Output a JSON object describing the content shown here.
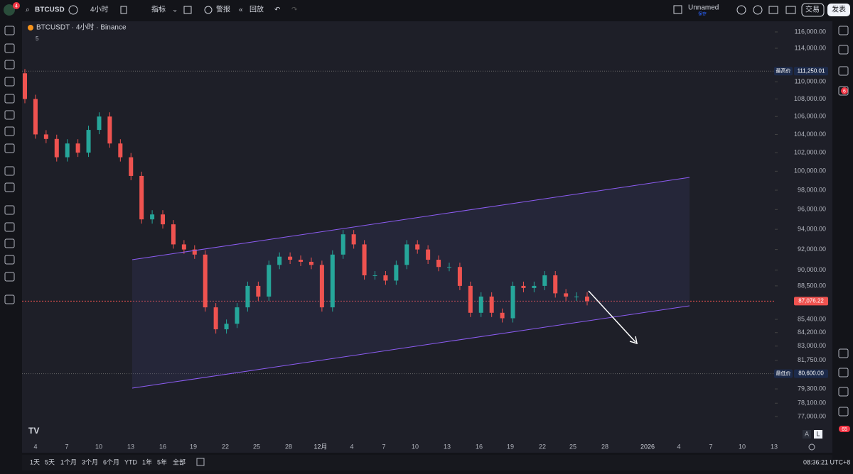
{
  "ui": {
    "symbol": "BTCUSD",
    "interval": "4小时",
    "indicators": "指标",
    "alerts": "警报",
    "replay": "回放",
    "layout_name": "Unnamed",
    "save": "保存",
    "trade": "交易",
    "publish": "发表",
    "logo_badge": "4",
    "chat_badge": "6",
    "bell_badge": "65",
    "auto_btn": "A",
    "log_btn": "L",
    "ranges": [
      "1天",
      "5天",
      "1个月",
      "3个月",
      "6个月",
      "YTD",
      "1年",
      "5年",
      "全部"
    ],
    "clock": "08:36:21 UTC+8"
  },
  "chart_data": {
    "type": "candlestick",
    "legend": "BTCUSDT · 4小时 · Binance",
    "legend_value": "5",
    "log_scale": true,
    "ylim": [
      77000,
      116000
    ],
    "yticks": [
      {
        "value": 116000,
        "label": "116,000.00"
      },
      {
        "value": 114000,
        "label": "114,000.00"
      },
      {
        "value": 110000,
        "label": "110,000.00"
      },
      {
        "value": 108000,
        "label": "108,000.00"
      },
      {
        "value": 106000,
        "label": "106,000.00"
      },
      {
        "value": 104000,
        "label": "104,000.00"
      },
      {
        "value": 102000,
        "label": "102,000.00"
      },
      {
        "value": 100000,
        "label": "100,000.00"
      },
      {
        "value": 98000,
        "label": "98,000.00"
      },
      {
        "value": 96000,
        "label": "96,000.00"
      },
      {
        "value": 94000,
        "label": "94,000.00"
      },
      {
        "value": 92000,
        "label": "92,000.00"
      },
      {
        "value": 90000,
        "label": "90,000.00"
      },
      {
        "value": 88500,
        "label": "88,500.00"
      },
      {
        "value": 85400,
        "label": "85,400.00"
      },
      {
        "value": 84200,
        "label": "84,200.00"
      },
      {
        "value": 83000,
        "label": "83,000.00"
      },
      {
        "value": 81750,
        "label": "81,750.00"
      },
      {
        "value": 79300,
        "label": "79,300.00"
      },
      {
        "value": 78100,
        "label": "78,100.00"
      },
      {
        "value": 77000,
        "label": "77,000.00"
      }
    ],
    "high": {
      "name": "最高价",
      "value": 111250.01,
      "label": "111,250.01"
    },
    "low": {
      "name": "最低价",
      "value": 80600,
      "label": "80,600.00"
    },
    "last": {
      "value": 87076.22,
      "label": "87,076.22"
    },
    "x_labels": [
      "4",
      "7",
      "10",
      "13",
      "16",
      "19",
      "22",
      "25",
      "28",
      "12月",
      "4",
      "7",
      "10",
      "13",
      "16",
      "19",
      "22",
      "25",
      "28",
      "2026",
      "4",
      "7",
      "10",
      "13"
    ],
    "open": 111000,
    "closes": [
      108000,
      104000,
      103500,
      101500,
      103000,
      102000,
      104500,
      106000,
      103000,
      101500,
      99500,
      95000,
      95500,
      94500,
      92500,
      92000,
      91500,
      86500,
      84500,
      85000,
      86500,
      88500,
      87500,
      90500,
      91300,
      91000,
      90800,
      90500,
      86500,
      91500,
      93500,
      92500,
      89500,
      89500,
      89000,
      90500,
      92500,
      92000,
      91000,
      90300,
      90300,
      88500,
      86000,
      87500,
      86000,
      85500,
      88500,
      88300,
      88500,
      89500,
      87800,
      87500,
      87500,
      87076.22
    ],
    "up_color": "#26a69a",
    "down_color": "#ef5350"
  }
}
